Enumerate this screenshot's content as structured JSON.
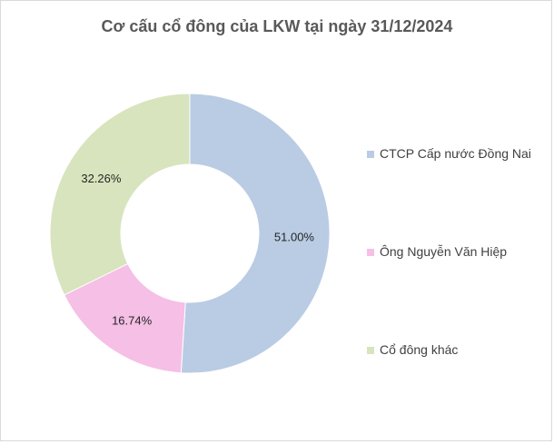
{
  "chart_data": {
    "type": "pie",
    "style": "donut",
    "title": "Cơ cấu cổ đông của LKW tại ngày 31/12/2024",
    "slices": [
      {
        "label": "CTCP Cấp nước Đồng Nai",
        "value": 51.0,
        "value_label": "51.00%",
        "color": "#b9cce4"
      },
      {
        "label": "Ông Nguyễn Văn Hiệp",
        "value": 16.74,
        "value_label": "16.74%",
        "color": "#f5bfe6"
      },
      {
        "label": "Cổ đông khác",
        "value": 32.26,
        "value_label": "32.26%",
        "color": "#d7e4bd"
      }
    ],
    "legend_position": "right"
  }
}
